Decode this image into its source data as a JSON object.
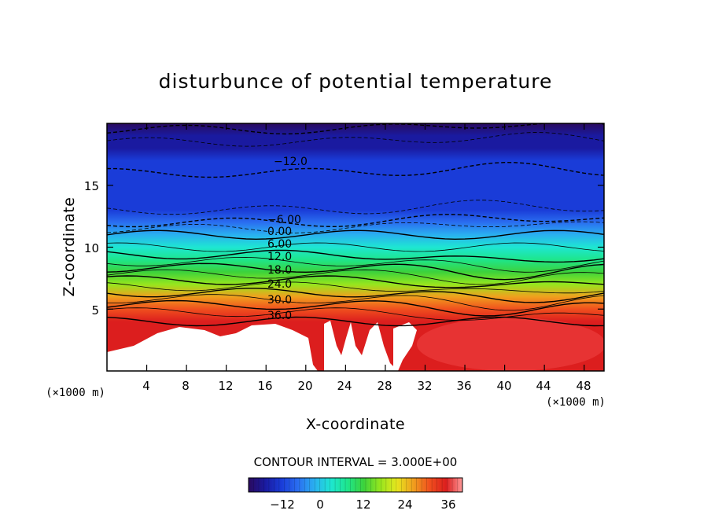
{
  "chart_data": {
    "type": "heatmap",
    "title": "disturbunce of potential temperature",
    "xlabel": "X-coordinate",
    "ylabel": "Z-coordinate",
    "x_unit": "(×1000 m)",
    "y_unit": "(×1000 m)",
    "xlim": [
      0,
      50
    ],
    "ylim": [
      0,
      20
    ],
    "x_ticks": [
      "4",
      "8",
      "12",
      "16",
      "20",
      "24",
      "28",
      "32",
      "36",
      "40",
      "44",
      "48"
    ],
    "y_ticks": [
      "5",
      "10",
      "15"
    ],
    "contour_interval_text": "CONTOUR INTERVAL = 3.000E+00",
    "contour_labels": [
      "−12.0",
      "−6.00",
      "0.00",
      "6.00",
      "12.0",
      "18.0",
      "24.0",
      "30.0",
      "36.0"
    ],
    "colorbar": {
      "min": -21,
      "max": 42,
      "ticks": [
        "−12",
        "0",
        "12",
        "24",
        "36"
      ],
      "colors": [
        "#2a0a5e",
        "#1a1aa0",
        "#1a3cd8",
        "#2a6ef0",
        "#2ab0f0",
        "#1ee6d2",
        "#1ee68c",
        "#3cd23c",
        "#96e61e",
        "#e6e61e",
        "#f0a01e",
        "#f0501e",
        "#dc1e1e",
        "#ff9a9a"
      ]
    },
    "profile": {
      "z": [
        0,
        2,
        4,
        5,
        6,
        7,
        8,
        9,
        10,
        11,
        12,
        13,
        14,
        15,
        16,
        17,
        18,
        19,
        20
      ],
      "theta": [
        37,
        37,
        36,
        32,
        26,
        20,
        14,
        8,
        3,
        0,
        -6,
        -9,
        -10,
        -11,
        -12,
        -13,
        -14,
        -16,
        -20
      ]
    }
  }
}
